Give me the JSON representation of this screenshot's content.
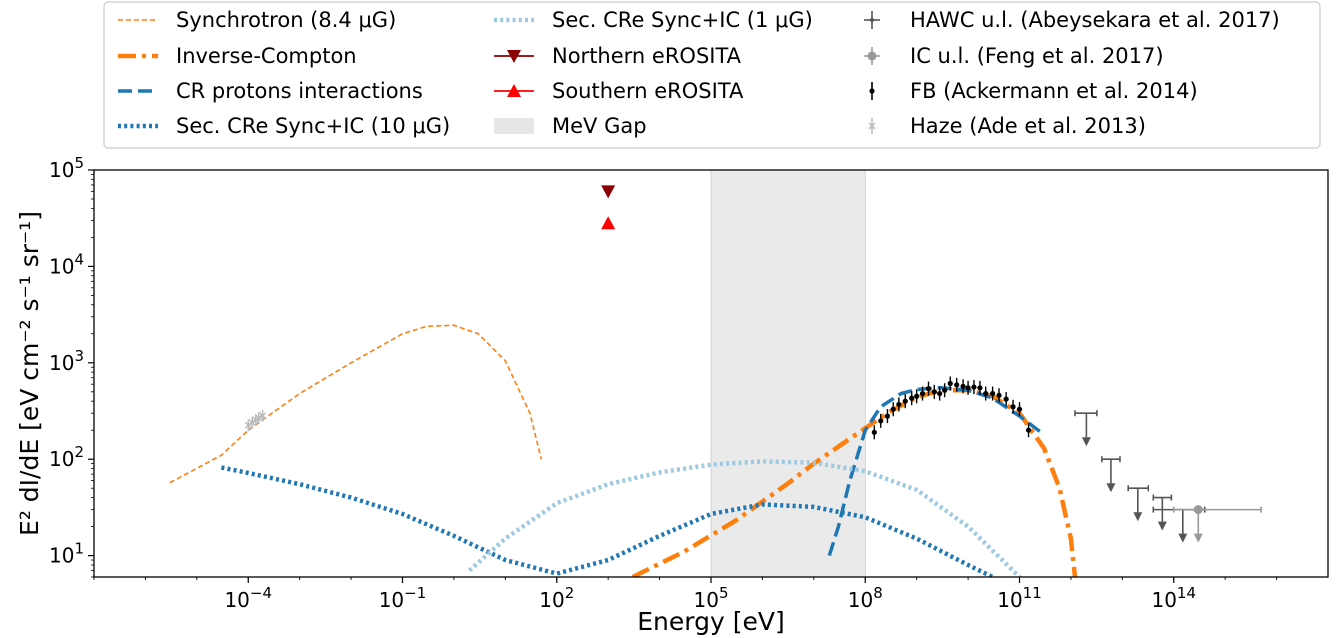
{
  "chart_data": {
    "type": "line",
    "title": "",
    "xlabel": "Energy [eV]",
    "ylabel": "E² dI/dE [eV cm⁻² s⁻¹ sr⁻¹]",
    "xscale": "log",
    "yscale": "log",
    "xlim": [
      1e-07,
      1e+17
    ],
    "ylim": [
      6,
      100000
    ],
    "grid": false,
    "legend_position": "top",
    "x_ticks": [
      {
        "value": 0.0001,
        "base": "10",
        "exp": "−4"
      },
      {
        "value": 0.1,
        "base": "10",
        "exp": "−1"
      },
      {
        "value": 100,
        "base": "10",
        "exp": "2"
      },
      {
        "value": 100000,
        "base": "10",
        "exp": "5"
      },
      {
        "value": 100000000,
        "base": "10",
        "exp": "8"
      },
      {
        "value": 100000000000,
        "base": "10",
        "exp": "11"
      },
      {
        "value": 100000000000000,
        "base": "10",
        "exp": "14"
      }
    ],
    "y_ticks": [
      {
        "value": 10,
        "base": "10",
        "exp": "1"
      },
      {
        "value": 100,
        "base": "10",
        "exp": "2"
      },
      {
        "value": 1000,
        "base": "10",
        "exp": "3"
      },
      {
        "value": 10000,
        "base": "10",
        "exp": "4"
      },
      {
        "value": 100000,
        "base": "10",
        "exp": "5"
      }
    ],
    "bands": [
      {
        "name": "MeV Gap",
        "x": [
          100000,
          100000000
        ],
        "color": "#d9d9d9",
        "opacity": 0.55
      }
    ],
    "series": [
      {
        "name": "Synchrotron (8.4 μG)",
        "color": "#ff7f0e",
        "style": "dashed",
        "width": 1.6,
        "x": [
          3e-06,
          3e-05,
          0.0001,
          0.001,
          0.01,
          0.1,
          0.3,
          1,
          3,
          10,
          30,
          50
        ],
        "y": [
          57,
          110,
          200,
          480,
          1000,
          2000,
          2400,
          2450,
          2000,
          1050,
          300,
          100
        ]
      },
      {
        "name": "Inverse-Compton",
        "color": "#ff7f0e",
        "style": "dashdot",
        "width": 4.5,
        "x": [
          3000,
          30000,
          300000,
          3000000,
          10000000,
          30000000,
          100000000,
          300000000,
          1000000000,
          3000000000,
          10000000000,
          30000000000,
          100000000000,
          300000000000,
          600000000000,
          1000000000000,
          1200000000000
        ],
        "y": [
          6,
          11,
          23,
          55,
          90,
          135,
          210,
          310,
          440,
          520,
          520,
          450,
          300,
          130,
          50,
          15,
          6
        ]
      },
      {
        "name": "CR protons interactions",
        "color": "#1f77b4",
        "style": "dashed",
        "width": 3.5,
        "x": [
          20000000,
          30000000,
          50000000,
          100000000,
          200000000,
          500000000,
          1000000000,
          3000000000,
          10000000000,
          30000000000,
          100000000000,
          300000000000
        ],
        "y": [
          10,
          20,
          60,
          200,
          350,
          480,
          530,
          550,
          520,
          430,
          280,
          180
        ]
      },
      {
        "name": "Sec. CRe Sync+IC (10 μG)",
        "color": "#1f77b4",
        "style": "dotted",
        "width": 4.5,
        "x": [
          3e-05,
          0.0001,
          0.001,
          0.01,
          0.1,
          1,
          10,
          100,
          1000,
          10000,
          100000,
          1000000,
          10000000,
          100000000,
          1000000000,
          10000000000,
          30000000000
        ],
        "y": [
          82,
          72,
          55,
          40,
          27,
          16,
          9,
          6.5,
          9,
          16,
          27,
          34,
          32,
          25,
          15,
          8,
          6
        ]
      },
      {
        "name": "Sec. CRe Sync+IC (1 μG)",
        "color": "#9ecae1",
        "style": "dotted",
        "width": 4.5,
        "x": [
          2,
          10,
          100,
          1000,
          10000,
          100000,
          1000000,
          10000000,
          100000000,
          1000000000,
          10000000000,
          100000000000,
          200000000000
        ],
        "y": [
          7,
          15,
          35,
          55,
          73,
          88,
          95,
          92,
          75,
          48,
          20,
          6,
          4
        ]
      }
    ],
    "markers": [
      {
        "name": "Northern eROSITA",
        "color": "#8b0000",
        "shape": "triangle-down",
        "x": 1000,
        "y": 60000
      },
      {
        "name": "Southern eROSITA",
        "color": "#ff0000",
        "shape": "triangle-up",
        "x": 1000,
        "y": 28000
      }
    ],
    "upper_limits": [
      {
        "name": "HAWC u.l. (Abeysekara et al. 2017)",
        "color": "#555555",
        "points": [
          {
            "x": 2000000000000.0,
            "y": 300,
            "xerr": [
              1200000000000.0,
              3200000000000.0
            ]
          },
          {
            "x": 6000000000000.0,
            "y": 100,
            "xerr": [
              4000000000000.0,
              9000000000000.0
            ]
          },
          {
            "x": 20000000000000.0,
            "y": 50,
            "xerr": [
              13000000000000.0,
              32000000000000.0
            ]
          },
          {
            "x": 60000000000000.0,
            "y": 40,
            "xerr": [
              40000000000000.0,
              90000000000000.0
            ]
          },
          {
            "x": 150000000000000.0,
            "y": 30,
            "xerr": [
              40000000000000.0,
              400000000000000.0
            ]
          }
        ]
      },
      {
        "name": "IC u.l. (Feng et al. 2017)",
        "color": "#999999",
        "points": [
          {
            "x": 300000000000000.0,
            "y": 30,
            "xerr": [
              100000000000000.0,
              5000000000000000.0
            ]
          }
        ]
      }
    ],
    "fb_points": {
      "name": "FB (Ackermann et al. 2014)",
      "color": "#000000",
      "x": [
        150000000,
        200000000,
        270000000,
        350000000,
        450000000,
        600000000,
        800000000,
        1000000000,
        1300000000,
        1700000000,
        2200000000,
        2800000000,
        3500000000,
        4500000000,
        6000000000,
        8000000000,
        10000000000,
        13000000000,
        17000000000,
        22000000000,
        30000000000,
        40000000000,
        55000000000,
        75000000000,
        100000000000,
        150000000000
      ],
      "y": [
        190,
        250,
        280,
        330,
        370,
        400,
        430,
        450,
        480,
        540,
        500,
        480,
        520,
        610,
        590,
        570,
        550,
        560,
        550,
        480,
        480,
        460,
        420,
        350,
        330,
        200
      ]
    },
    "haze_points": {
      "name": "Haze (Ade et al. 2013)",
      "color": "#bbbbbb",
      "x": [
        0.0001,
        0.00012,
        0.00014,
        0.00016,
        0.00019
      ],
      "y": [
        225,
        240,
        255,
        268,
        282
      ]
    }
  }
}
